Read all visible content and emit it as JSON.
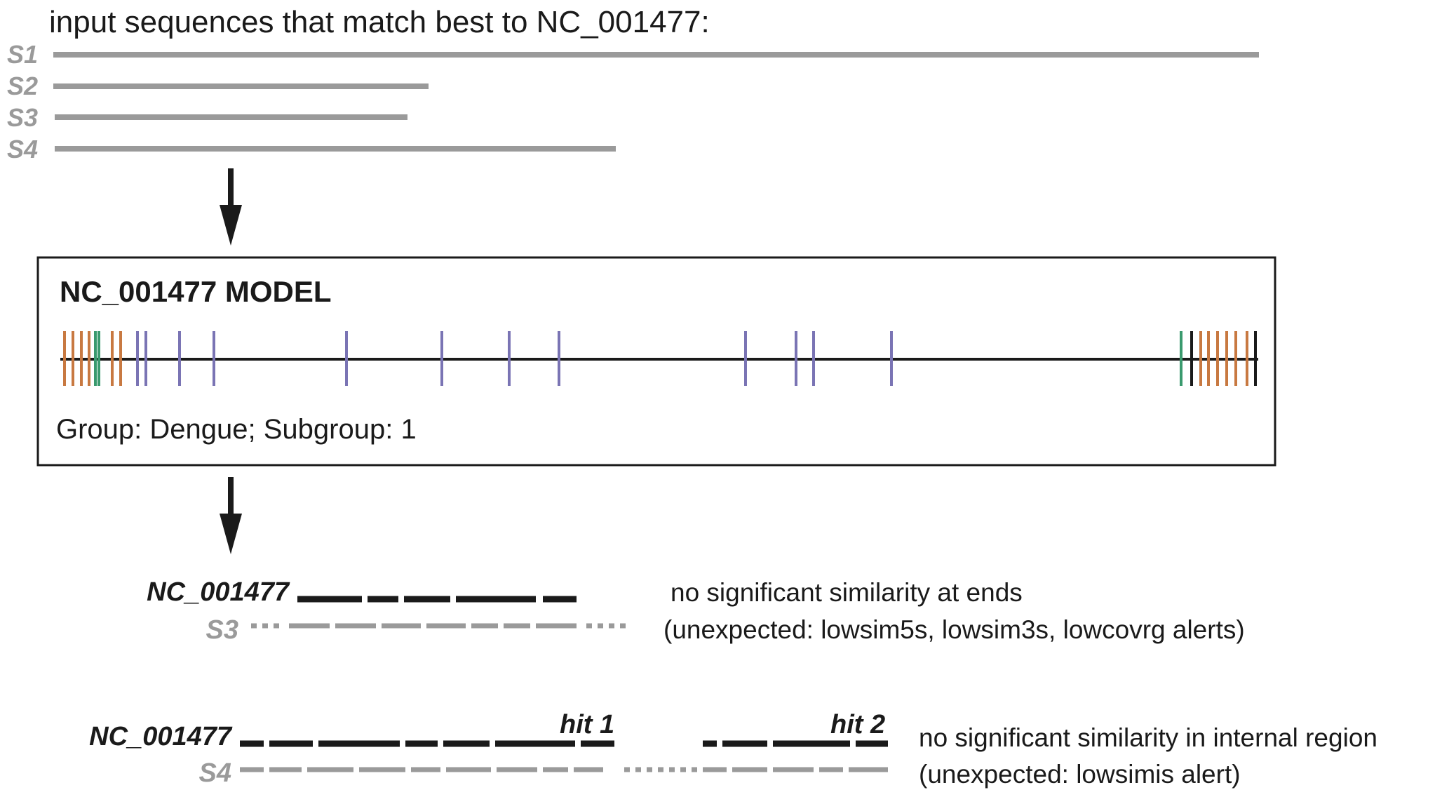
{
  "header": {
    "title": "input sequences that match best to NC_001477:"
  },
  "sequences": [
    {
      "label": "S1",
      "length_frac": 1.0
    },
    {
      "label": "S2",
      "length_frac": 0.31
    },
    {
      "label": "S3",
      "length_frac": 0.29
    },
    {
      "label": "S4",
      "length_frac": 0.465
    }
  ],
  "model": {
    "title": "NC_001477 MODEL",
    "group_text": "Group: Dengue; Subgroup: 1",
    "colors": {
      "orange": "#c87941",
      "green": "#3a9a6e",
      "purple": "#7a74b4",
      "black": "#1a1a1a",
      "gray": "#9a9a9a"
    }
  },
  "example1": {
    "ref_label": "NC_001477",
    "query_label": "S3",
    "message": "no significant similarity at ends",
    "alerts": "(unexpected: lowsim5s, lowsim3s, lowcovrg alerts)"
  },
  "example2": {
    "ref_label": "NC_001477",
    "query_label": "S4",
    "hit1": "hit 1",
    "hit2": "hit 2",
    "message": "no significant similarity in internal region",
    "alerts": "(unexpected: lowsimis alert)"
  }
}
